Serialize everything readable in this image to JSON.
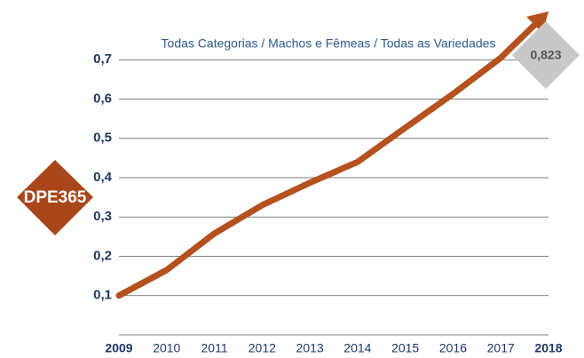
{
  "logo": "DPE365",
  "chart_data": {
    "type": "line",
    "title": "Todas Categorias / Machos e Fêmeas / Todas as Variedades",
    "categories": [
      "2009",
      "2010",
      "2011",
      "2012",
      "2013",
      "2014",
      "2015",
      "2016",
      "2017",
      "2018"
    ],
    "values": [
      0.1,
      0.165,
      0.258,
      0.33,
      0.387,
      0.44,
      0.527,
      0.613,
      0.705,
      0.823
    ],
    "value_labels": [
      null,
      null,
      null,
      null,
      null,
      null,
      null,
      null,
      null,
      "0,823"
    ],
    "color": "#b5511f",
    "ylim": [
      0,
      0.8
    ],
    "yticks": [
      {
        "value": 0.1,
        "label": "0,1"
      },
      {
        "value": 0.2,
        "label": "0,2"
      },
      {
        "value": 0.3,
        "label": "0,3"
      },
      {
        "value": 0.4,
        "label": "0,4"
      },
      {
        "value": 0.5,
        "label": "0,5"
      },
      {
        "value": 0.6,
        "label": "0,6"
      },
      {
        "value": 0.7,
        "label": "0,7"
      }
    ],
    "grid": true
  }
}
